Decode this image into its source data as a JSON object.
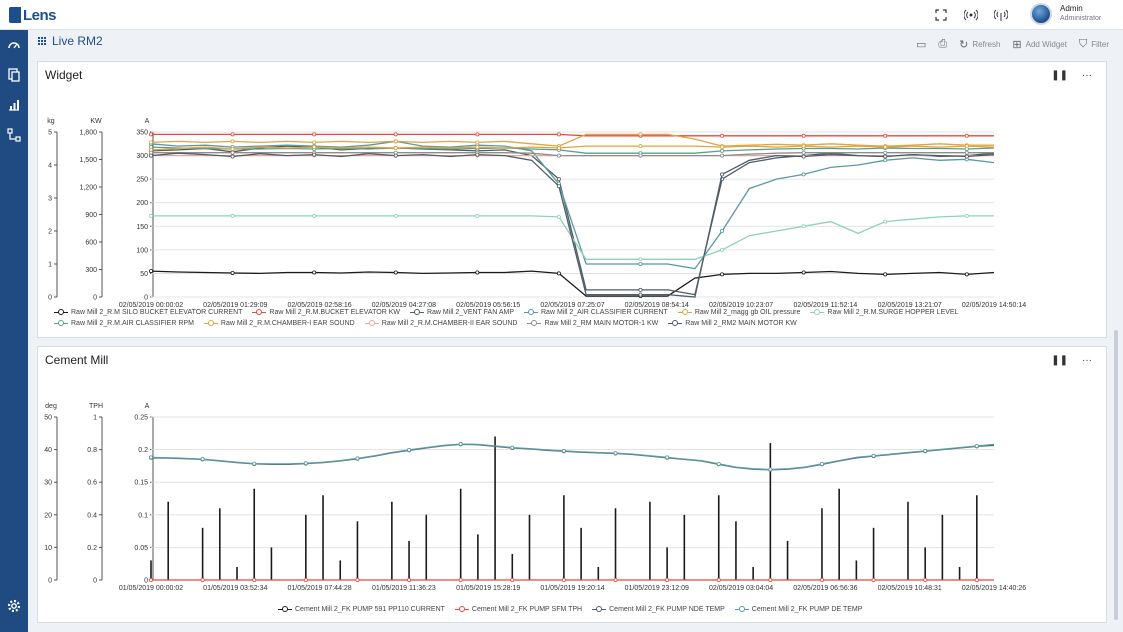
{
  "app": {
    "logo_text": "Lens"
  },
  "topbar": {
    "icons": [
      "fullscreen-icon",
      "broadcast-icon",
      "signal-icon"
    ],
    "user": {
      "name": "Admin",
      "role": "Administrator"
    }
  },
  "sidebar": {
    "items": [
      "dashboard-icon",
      "reports-icon",
      "analytics-icon",
      "hierarchy-icon"
    ],
    "bottom": "settings-icon"
  },
  "page": {
    "title": "Live RM2",
    "tools": {
      "refresh": "Refresh",
      "add_widget": "Add Widget",
      "filter": "Filter"
    }
  },
  "colors": {
    "black": "#1b1b1b",
    "red": "#e8483d",
    "slate": "#4f5d66",
    "teal": "#5a9aa0",
    "orange": "#e0a53f",
    "mint": "#8fd1bd",
    "sage": "#5e9c8e",
    "blush": "#e5a8a0",
    "gray": "#8d8d8d",
    "accent": "#1f4e8c"
  },
  "panels": [
    {
      "title": "Widget",
      "controls": {
        "pause": "❚❚",
        "more": "···"
      },
      "chart_data": {
        "type": "line",
        "title": "",
        "axes": [
          {
            "unit": "kg",
            "ticks": [
              "0",
              "1",
              "2",
              "3",
              "4",
              "5"
            ],
            "range": [
              0,
              5
            ]
          },
          {
            "unit": "KW",
            "ticks": [
              "0",
              "300",
              "600",
              "900",
              "1,200",
              "1,500",
              "1,800"
            ],
            "range": [
              0,
              1800
            ]
          },
          {
            "unit": "A",
            "ticks": [
              "0",
              "50",
              "100",
              "150",
              "200",
              "250",
              "300",
              "350"
            ],
            "range": [
              0,
              350
            ]
          }
        ],
        "x_ticks": [
          "02/05/2019 00:00:02",
          "02/05/2019 01:29:09",
          "02/05/2019 02:58:16",
          "02/05/2019 04:27:08",
          "02/05/2019 05:56:15",
          "02/05/2019 07:25:07",
          "02/05/2019 08:54:14",
          "02/05/2019 10:23:07",
          "02/05/2019 11:52:14",
          "02/05/2019 13:21:07",
          "02/05/2019 14:50:14"
        ],
        "series": [
          {
            "name": "Raw Mill 2_R.M SILO BUCKET ELEVATOR CURRENT",
            "color": "#1b1b1b",
            "y": [
              55,
              53,
              52,
              51,
              50,
              52,
              52,
              51,
              53,
              52,
              50,
              51,
              52,
              52,
              55,
              50,
              2,
              2,
              2,
              2,
              40,
              48,
              50,
              50,
              52,
              54,
              50,
              48,
              50,
              52,
              48,
              52
            ]
          },
          {
            "name": "Raw Mill 2_R.M.BUCKET ELEVATOR KW",
            "color": "#e8483d",
            "y": [
              345,
              345,
              345,
              345,
              345,
              345,
              345,
              345,
              345,
              345,
              345,
              345,
              345,
              345,
              345,
              345,
              342,
              342,
              342,
              342,
              342,
              342,
              342,
              342,
              342,
              342,
              342,
              342,
              342,
              342,
              342,
              342
            ]
          },
          {
            "name": "Raw Mill 2_VENT FAN  AMP",
            "color": "#4f5d66",
            "y": [
              310,
              312,
              315,
              308,
              316,
              320,
              318,
              312,
              315,
              316,
              314,
              312,
              310,
              312,
              300,
              250,
              15,
              15,
              15,
              15,
              5,
              250,
              285,
              295,
              300,
              305,
              300,
              298,
              302,
              298,
              300,
              305
            ]
          },
          {
            "name": "Raw Mill 2_AIR CLASSIFIER CURRENT",
            "color": "#5a9aa0",
            "y": [
              325,
              320,
              322,
              318,
              320,
              322,
              320,
              318,
              322,
              330,
              320,
              318,
              322,
              320,
              310,
              240,
              70,
              70,
              70,
              70,
              60,
              140,
              230,
              250,
              260,
              275,
              280,
              290,
              295,
              290,
              292,
              285
            ]
          },
          {
            "name": "Raw Mill 2_magg gb OIL pressure",
            "color": "#e0a53f",
            "y": [
              328,
              330,
              328,
              330,
              328,
              330,
              328,
              330,
              328,
              330,
              328,
              330,
              328,
              330,
              325,
              320,
              345,
              345,
              345,
              345,
              335,
              320,
              322,
              324,
              322,
              325,
              322,
              320,
              322,
              325,
              322,
              322
            ]
          },
          {
            "name": "Raw Mill 2_R.M.SURGE HOPPER LEVEL",
            "color": "#8fd1bd",
            "y": [
              172,
              172,
              172,
              172,
              172,
              172,
              172,
              172,
              172,
              172,
              172,
              172,
              172,
              172,
              172,
              170,
              80,
              80,
              80,
              80,
              80,
              100,
              130,
              140,
              150,
              160,
              135,
              160,
              165,
              170,
              172,
              172
            ]
          },
          {
            "name": "Raw Mill 2_R.M.AIR CLASSIFIER RPM",
            "color": "#5e9c8e",
            "y": [
              318,
              316,
              315,
              314,
              314,
              315,
              314,
              315,
              314,
              316,
              315,
              314,
              315,
              316,
              314,
              312,
              305,
              305,
              305,
              305,
              305,
              310,
              312,
              314,
              315,
              315,
              314,
              316,
              315,
              315,
              314,
              316
            ]
          },
          {
            "name": "Raw Mill 2_R.M.CHAMBER-I EAR SOUND",
            "color": "#e0a53f",
            "y": [
              312,
              315,
              318,
              314,
              318,
              316,
              318,
              316,
              318,
              316,
              318,
              316,
              318,
              316,
              318,
              316,
              320,
              320,
              320,
              320,
              320,
              318,
              320,
              318,
              320,
              318,
              320,
              318,
              320,
              318,
              320,
              318
            ]
          },
          {
            "name": "Raw Mill 2_R.M.CHAMBER-II EAR SOUND",
            "color": "#e5a8a0",
            "y": [
              300,
              300,
              300,
              300,
              300,
              300,
              300,
              300,
              300,
              300,
              300,
              300,
              300,
              300,
              300,
              300,
              300,
              300,
              300,
              300,
              300,
              300,
              300,
              300,
              300,
              300,
              300,
              300,
              300,
              300,
              300,
              300
            ]
          },
          {
            "name": "Raw Mill 2_RM MAIN MOTOR-1  KW",
            "color": "#8d8d8d",
            "y": [
              306,
              306,
              306,
              306,
              306,
              306,
              306,
              306,
              306,
              306,
              306,
              306,
              306,
              306,
              305,
              300,
              300,
              300,
              300,
              300,
              300,
              300,
              303,
              305,
              306,
              306,
              306,
              306,
              306,
              306,
              306,
              306
            ]
          },
          {
            "name": "Raw Mill 2_RM2 MAIN MOTOR KW",
            "color": "#4f5d66",
            "y": [
              300,
              305,
              302,
              298,
              304,
              300,
              302,
              298,
              304,
              300,
              302,
              298,
              302,
              300,
              290,
              235,
              5,
              5,
              5,
              5,
              0,
              260,
              290,
              300,
              298,
              302,
              300,
              298,
              302,
              300,
              298,
              302
            ]
          }
        ],
        "legend_position": "bottom"
      }
    },
    {
      "title": "Cement Mill",
      "controls": {
        "pause": "❚❚",
        "more": "···"
      },
      "chart_data": {
        "type": "line",
        "title": "",
        "axes": [
          {
            "unit": "deg",
            "ticks": [
              "0",
              "10",
              "20",
              "30",
              "40",
              "50"
            ],
            "range": [
              0,
              50
            ]
          },
          {
            "unit": "TPH",
            "ticks": [
              "0",
              "0.2",
              "0.4",
              "0.6",
              "0.8",
              "1"
            ],
            "range": [
              0,
              1
            ]
          },
          {
            "unit": "A",
            "ticks": [
              "0",
              "0.05",
              "0.1",
              "0.15",
              "0.2",
              "0.25"
            ],
            "range": [
              0,
              0.25
            ]
          }
        ],
        "x_ticks": [
          "01/05/2019 00:00:02",
          "01/05/2019 03:52:34",
          "01/05/2019 07:44:28",
          "01/05/2019 11:36:23",
          "01/05/2019 15:28:19",
          "01/05/2019 19:20:14",
          "01/05/2019 23:12:09",
          "02/05/2019 03:04:04",
          "02/05/2019 06:56:36",
          "02/05/2019 10:48:31",
          "02/05/2019 14:40:26"
        ],
        "series": [
          {
            "name": "Cement Mill 2_FK PUMP 591 PP110  CURRENT",
            "color": "#1b1b1b",
            "style": "spikes",
            "y": [
              0.03,
              0.12,
              0.0,
              0.08,
              0.11,
              0.02,
              0.14,
              0.05,
              0.0,
              0.1,
              0.13,
              0.03,
              0.09,
              0.0,
              0.12,
              0.06,
              0.1,
              0.0,
              0.14,
              0.07,
              0.22,
              0.04,
              0.1,
              0.0,
              0.13,
              0.08,
              0.02,
              0.11,
              0.0,
              0.12,
              0.05,
              0.1,
              0.0,
              0.13,
              0.09,
              0.02,
              0.21,
              0.06,
              0.0,
              0.11,
              0.14,
              0.03,
              0.08,
              0.0,
              0.12,
              0.05,
              0.1,
              0.02,
              0.13,
              0.0
            ]
          },
          {
            "name": "Cement Mill 2_FK PUMP SFM TPH",
            "color": "#e8483d",
            "y": [
              0,
              0,
              0,
              0,
              0,
              0,
              0,
              0,
              0,
              0,
              0,
              0,
              0,
              0,
              0,
              0,
              0,
              0,
              0,
              0,
              0,
              0,
              0,
              0,
              0,
              0,
              0,
              0,
              0,
              0,
              0,
              0,
              0,
              0,
              0,
              0,
              0,
              0,
              0,
              0,
              0,
              0,
              0,
              0,
              0,
              0,
              0,
              0,
              0,
              0
            ]
          },
          {
            "name": "Cement Mill 2_FK PUMP NDE TEMP",
            "color": "#4f5d66",
            "y": [
              37.5,
              37.4,
              37.2,
              37,
              36.5,
              36,
              35.6,
              35.5,
              35.5,
              35.7,
              36,
              36.5,
              37.2,
              38,
              39,
              39.8,
              40.5,
              41.2,
              41.6,
              41.5,
              41,
              40.5,
              40.2,
              39.8,
              39.5,
              39.2,
              39,
              38.8,
              38.5,
              38,
              37.5,
              37,
              36.5,
              35.5,
              34.5,
              34,
              33.8,
              34,
              34.5,
              35.5,
              36.5,
              37.5,
              38,
              38.5,
              39,
              39.5,
              40,
              40.5,
              41,
              41.3
            ]
          },
          {
            "name": "Cement Mill 2_FK PUMP DE TEMP",
            "color": "#5a9aa0",
            "y": [
              37.6,
              37.5,
              37.3,
              37.1,
              36.6,
              36.1,
              35.7,
              35.6,
              35.6,
              35.8,
              36.1,
              36.6,
              37.3,
              38.1,
              39.1,
              39.9,
              40.6,
              41.3,
              41.7,
              41.6,
              41.1,
              40.6,
              40.3,
              39.9,
              39.6,
              39.3,
              39.1,
              38.9,
              38.6,
              38.1,
              37.6,
              37.1,
              36.6,
              35.6,
              34.6,
              34.1,
              33.9,
              34.1,
              34.6,
              35.6,
              36.6,
              37.6,
              38.1,
              38.6,
              39.1,
              39.6,
              40.1,
              40.6,
              41.1,
              41.6
            ]
          }
        ],
        "legend_position": "bottom"
      }
    }
  ]
}
